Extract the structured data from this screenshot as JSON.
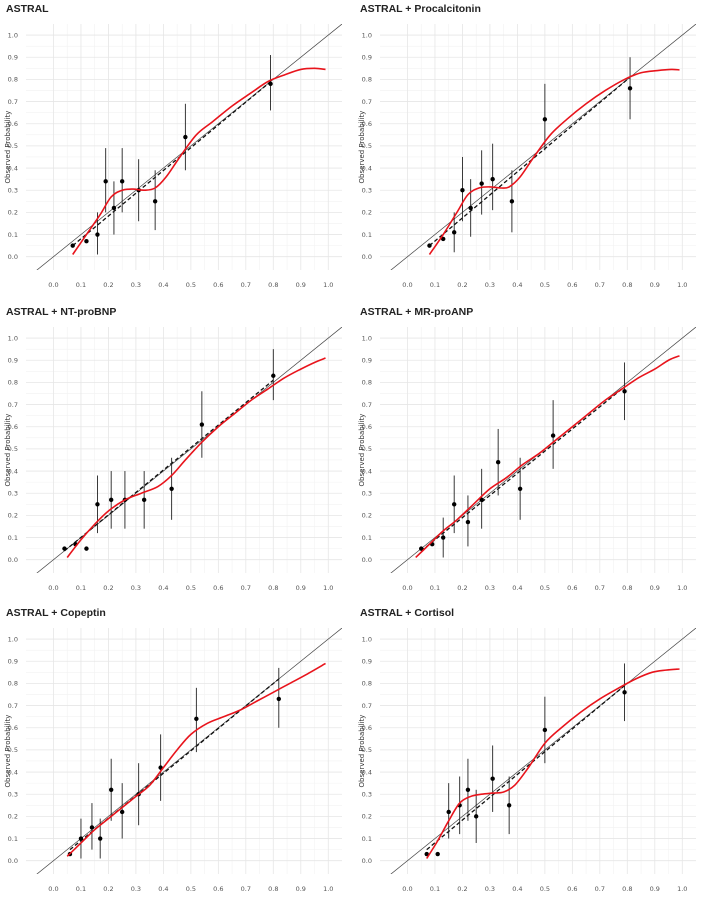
{
  "chart_data": [
    {
      "type": "scatter",
      "title": "ASTRAL",
      "ylabel": "Observed Probability",
      "xlabel": "",
      "xlim": [
        0,
        1
      ],
      "ylim": [
        0,
        1
      ],
      "grid": true,
      "xticks": [
        "0.0",
        "0.1",
        "0.2",
        "0.3",
        "0.4",
        "0.5",
        "0.6",
        "0.7",
        "0.8",
        "0.9",
        "1.0"
      ],
      "yticks": [
        "0.0",
        "0.1",
        "0.2",
        "0.3",
        "0.4",
        "0.5",
        "0.6",
        "0.7",
        "0.8",
        "0.9",
        "1.0"
      ],
      "points": [
        {
          "x": 0.07,
          "y": 0.05,
          "lo": 0.05,
          "hi": 0.05
        },
        {
          "x": 0.12,
          "y": 0.07,
          "lo": 0.07,
          "hi": 0.07
        },
        {
          "x": 0.16,
          "y": 0.1,
          "lo": 0.01,
          "hi": 0.2
        },
        {
          "x": 0.19,
          "y": 0.34,
          "lo": 0.2,
          "hi": 0.49
        },
        {
          "x": 0.22,
          "y": 0.22,
          "lo": 0.1,
          "hi": 0.34
        },
        {
          "x": 0.25,
          "y": 0.34,
          "lo": 0.2,
          "hi": 0.49
        },
        {
          "x": 0.31,
          "y": 0.3,
          "lo": 0.16,
          "hi": 0.44
        },
        {
          "x": 0.37,
          "y": 0.25,
          "lo": 0.12,
          "hi": 0.39
        },
        {
          "x": 0.48,
          "y": 0.54,
          "lo": 0.39,
          "hi": 0.69
        },
        {
          "x": 0.79,
          "y": 0.78,
          "lo": 0.66,
          "hi": 0.91
        }
      ],
      "dashed_fit": [
        [
          0.07,
          0.05
        ],
        [
          0.79,
          0.79
        ]
      ],
      "smooth_curve": [
        [
          0.07,
          0.01
        ],
        [
          0.12,
          0.1
        ],
        [
          0.17,
          0.19
        ],
        [
          0.21,
          0.27
        ],
        [
          0.25,
          0.3
        ],
        [
          0.29,
          0.305
        ],
        [
          0.33,
          0.3
        ],
        [
          0.37,
          0.31
        ],
        [
          0.41,
          0.36
        ],
        [
          0.46,
          0.45
        ],
        [
          0.52,
          0.55
        ],
        [
          0.58,
          0.61
        ],
        [
          0.65,
          0.68
        ],
        [
          0.72,
          0.74
        ],
        [
          0.78,
          0.79
        ],
        [
          0.84,
          0.82
        ],
        [
          0.9,
          0.845
        ],
        [
          0.95,
          0.85
        ],
        [
          0.99,
          0.845
        ]
      ]
    },
    {
      "type": "scatter",
      "title": "ASTRAL + Procalcitonin",
      "ylabel": "Observed Probability",
      "xlabel": "",
      "xlim": [
        0,
        1
      ],
      "ylim": [
        0,
        1
      ],
      "grid": true,
      "xticks": [
        "0.0",
        "0.1",
        "0.2",
        "0.3",
        "0.4",
        "0.5",
        "0.6",
        "0.7",
        "0.8",
        "0.9",
        "1.0"
      ],
      "yticks": [
        "0.0",
        "0.1",
        "0.2",
        "0.3",
        "0.4",
        "0.5",
        "0.6",
        "0.7",
        "0.8",
        "0.9",
        "1.0"
      ],
      "points": [
        {
          "x": 0.08,
          "y": 0.05,
          "lo": 0.05,
          "hi": 0.05
        },
        {
          "x": 0.13,
          "y": 0.08,
          "lo": 0.08,
          "hi": 0.08
        },
        {
          "x": 0.17,
          "y": 0.11,
          "lo": 0.02,
          "hi": 0.2
        },
        {
          "x": 0.2,
          "y": 0.3,
          "lo": 0.16,
          "hi": 0.45
        },
        {
          "x": 0.23,
          "y": 0.22,
          "lo": 0.09,
          "hi": 0.35
        },
        {
          "x": 0.27,
          "y": 0.33,
          "lo": 0.19,
          "hi": 0.48
        },
        {
          "x": 0.31,
          "y": 0.35,
          "lo": 0.21,
          "hi": 0.51
        },
        {
          "x": 0.38,
          "y": 0.25,
          "lo": 0.11,
          "hi": 0.39
        },
        {
          "x": 0.5,
          "y": 0.62,
          "lo": 0.48,
          "hi": 0.78
        },
        {
          "x": 0.81,
          "y": 0.76,
          "lo": 0.62,
          "hi": 0.9
        }
      ],
      "dashed_fit": [
        [
          0.08,
          0.05
        ],
        [
          0.81,
          0.81
        ]
      ],
      "smooth_curve": [
        [
          0.08,
          0.01
        ],
        [
          0.13,
          0.1
        ],
        [
          0.18,
          0.2
        ],
        [
          0.22,
          0.28
        ],
        [
          0.26,
          0.31
        ],
        [
          0.3,
          0.315
        ],
        [
          0.34,
          0.31
        ],
        [
          0.37,
          0.315
        ],
        [
          0.41,
          0.36
        ],
        [
          0.46,
          0.45
        ],
        [
          0.52,
          0.55
        ],
        [
          0.58,
          0.62
        ],
        [
          0.65,
          0.69
        ],
        [
          0.72,
          0.75
        ],
        [
          0.79,
          0.8
        ],
        [
          0.85,
          0.83
        ],
        [
          0.91,
          0.84
        ],
        [
          0.96,
          0.845
        ],
        [
          0.99,
          0.843
        ]
      ]
    },
    {
      "type": "scatter",
      "title": "ASTRAL + NT-proBNP",
      "ylabel": "Observed Probability",
      "xlabel": "",
      "xlim": [
        0,
        1
      ],
      "ylim": [
        0,
        1
      ],
      "grid": true,
      "xticks": [
        "0.0",
        "0.1",
        "0.2",
        "0.3",
        "0.4",
        "0.5",
        "0.6",
        "0.7",
        "0.8",
        "0.9",
        "1.0"
      ],
      "yticks": [
        "0.0",
        "0.1",
        "0.2",
        "0.3",
        "0.4",
        "0.5",
        "0.6",
        "0.7",
        "0.8",
        "0.9",
        "1.0"
      ],
      "points": [
        {
          "x": 0.04,
          "y": 0.05,
          "lo": 0.05,
          "hi": 0.05
        },
        {
          "x": 0.08,
          "y": 0.07,
          "lo": 0.07,
          "hi": 0.07
        },
        {
          "x": 0.12,
          "y": 0.05,
          "lo": 0.05,
          "hi": 0.05
        },
        {
          "x": 0.16,
          "y": 0.25,
          "lo": 0.12,
          "hi": 0.38
        },
        {
          "x": 0.21,
          "y": 0.27,
          "lo": 0.14,
          "hi": 0.4
        },
        {
          "x": 0.26,
          "y": 0.27,
          "lo": 0.14,
          "hi": 0.4
        },
        {
          "x": 0.33,
          "y": 0.27,
          "lo": 0.14,
          "hi": 0.4
        },
        {
          "x": 0.43,
          "y": 0.32,
          "lo": 0.18,
          "hi": 0.46
        },
        {
          "x": 0.54,
          "y": 0.61,
          "lo": 0.46,
          "hi": 0.76
        },
        {
          "x": 0.8,
          "y": 0.83,
          "lo": 0.72,
          "hi": 0.95
        }
      ],
      "dashed_fit": [
        [
          0.04,
          0.04
        ],
        [
          0.8,
          0.81
        ]
      ],
      "smooth_curve": [
        [
          0.05,
          0.01
        ],
        [
          0.1,
          0.09
        ],
        [
          0.15,
          0.16
        ],
        [
          0.2,
          0.22
        ],
        [
          0.26,
          0.27
        ],
        [
          0.32,
          0.3
        ],
        [
          0.38,
          0.33
        ],
        [
          0.43,
          0.38
        ],
        [
          0.48,
          0.45
        ],
        [
          0.54,
          0.53
        ],
        [
          0.6,
          0.6
        ],
        [
          0.66,
          0.66
        ],
        [
          0.72,
          0.72
        ],
        [
          0.78,
          0.77
        ],
        [
          0.84,
          0.82
        ],
        [
          0.9,
          0.86
        ],
        [
          0.95,
          0.89
        ],
        [
          0.99,
          0.91
        ]
      ]
    },
    {
      "type": "scatter",
      "title": "ASTRAL + MR-proANP",
      "ylabel": "Observed Probability",
      "xlabel": "",
      "xlim": [
        0,
        1
      ],
      "ylim": [
        0,
        1
      ],
      "grid": true,
      "xticks": [
        "0.0",
        "0.1",
        "0.2",
        "0.3",
        "0.4",
        "0.5",
        "0.6",
        "0.7",
        "0.8",
        "0.9",
        "1.0"
      ],
      "yticks": [
        "0.0",
        "0.1",
        "0.2",
        "0.3",
        "0.4",
        "0.5",
        "0.6",
        "0.7",
        "0.8",
        "0.9",
        "1.0"
      ],
      "points": [
        {
          "x": 0.05,
          "y": 0.05,
          "lo": 0.05,
          "hi": 0.05
        },
        {
          "x": 0.09,
          "y": 0.07,
          "lo": 0.07,
          "hi": 0.07
        },
        {
          "x": 0.13,
          "y": 0.1,
          "lo": 0.01,
          "hi": 0.19
        },
        {
          "x": 0.17,
          "y": 0.25,
          "lo": 0.12,
          "hi": 0.38
        },
        {
          "x": 0.22,
          "y": 0.17,
          "lo": 0.06,
          "hi": 0.29
        },
        {
          "x": 0.27,
          "y": 0.27,
          "lo": 0.14,
          "hi": 0.41
        },
        {
          "x": 0.33,
          "y": 0.44,
          "lo": 0.29,
          "hi": 0.59
        },
        {
          "x": 0.41,
          "y": 0.32,
          "lo": 0.18,
          "hi": 0.46
        },
        {
          "x": 0.53,
          "y": 0.56,
          "lo": 0.41,
          "hi": 0.72
        },
        {
          "x": 0.79,
          "y": 0.76,
          "lo": 0.63,
          "hi": 0.89
        }
      ],
      "dashed_fit": [
        [
          0.05,
          0.04
        ],
        [
          0.79,
          0.78
        ]
      ],
      "smooth_curve": [
        [
          0.03,
          0.01
        ],
        [
          0.08,
          0.07
        ],
        [
          0.13,
          0.13
        ],
        [
          0.18,
          0.18
        ],
        [
          0.24,
          0.25
        ],
        [
          0.3,
          0.32
        ],
        [
          0.36,
          0.37
        ],
        [
          0.42,
          0.43
        ],
        [
          0.48,
          0.48
        ],
        [
          0.54,
          0.54
        ],
        [
          0.6,
          0.6
        ],
        [
          0.66,
          0.66
        ],
        [
          0.72,
          0.72
        ],
        [
          0.78,
          0.77
        ],
        [
          0.84,
          0.82
        ],
        [
          0.9,
          0.86
        ],
        [
          0.95,
          0.9
        ],
        [
          0.99,
          0.92
        ]
      ]
    },
    {
      "type": "scatter",
      "title": "ASTRAL + Copeptin",
      "ylabel": "Observed Probability",
      "xlabel": "",
      "xlim": [
        0,
        1
      ],
      "ylim": [
        0,
        1
      ],
      "grid": true,
      "xticks": [
        "0.0",
        "0.1",
        "0.2",
        "0.3",
        "0.4",
        "0.5",
        "0.6",
        "0.7",
        "0.8",
        "0.9",
        "1.0"
      ],
      "yticks": [
        "0.0",
        "0.1",
        "0.2",
        "0.3",
        "0.4",
        "0.5",
        "0.6",
        "0.7",
        "0.8",
        "0.9",
        "1.0"
      ],
      "points": [
        {
          "x": 0.06,
          "y": 0.03,
          "lo": 0.03,
          "hi": 0.03
        },
        {
          "x": 0.1,
          "y": 0.1,
          "lo": 0.01,
          "hi": 0.19
        },
        {
          "x": 0.14,
          "y": 0.15,
          "lo": 0.05,
          "hi": 0.26
        },
        {
          "x": 0.17,
          "y": 0.1,
          "lo": 0.01,
          "hi": 0.19
        },
        {
          "x": 0.21,
          "y": 0.32,
          "lo": 0.18,
          "hi": 0.46
        },
        {
          "x": 0.25,
          "y": 0.22,
          "lo": 0.1,
          "hi": 0.35
        },
        {
          "x": 0.31,
          "y": 0.3,
          "lo": 0.16,
          "hi": 0.44
        },
        {
          "x": 0.39,
          "y": 0.42,
          "lo": 0.27,
          "hi": 0.57
        },
        {
          "x": 0.52,
          "y": 0.64,
          "lo": 0.49,
          "hi": 0.78
        },
        {
          "x": 0.82,
          "y": 0.73,
          "lo": 0.6,
          "hi": 0.87
        }
      ],
      "dashed_fit": [
        [
          0.06,
          0.05
        ],
        [
          0.82,
          0.82
        ]
      ],
      "smooth_curve": [
        [
          0.05,
          0.02
        ],
        [
          0.1,
          0.08
        ],
        [
          0.15,
          0.14
        ],
        [
          0.2,
          0.19
        ],
        [
          0.25,
          0.24
        ],
        [
          0.3,
          0.29
        ],
        [
          0.35,
          0.34
        ],
        [
          0.4,
          0.42
        ],
        [
          0.45,
          0.5
        ],
        [
          0.5,
          0.57
        ],
        [
          0.56,
          0.62
        ],
        [
          0.62,
          0.65
        ],
        [
          0.68,
          0.68
        ],
        [
          0.74,
          0.72
        ],
        [
          0.8,
          0.76
        ],
        [
          0.86,
          0.8
        ],
        [
          0.92,
          0.84
        ],
        [
          0.99,
          0.89
        ]
      ]
    },
    {
      "type": "scatter",
      "title": "ASTRAL + Cortisol",
      "ylabel": "Observed Probability",
      "xlabel": "",
      "xlim": [
        0,
        1
      ],
      "ylim": [
        0,
        1
      ],
      "grid": true,
      "xticks": [
        "0.0",
        "0.1",
        "0.2",
        "0.3",
        "0.4",
        "0.5",
        "0.6",
        "0.7",
        "0.8",
        "0.9",
        "1.0"
      ],
      "yticks": [
        "0.0",
        "0.1",
        "0.2",
        "0.3",
        "0.4",
        "0.5",
        "0.6",
        "0.7",
        "0.8",
        "0.9",
        "1.0"
      ],
      "points": [
        {
          "x": 0.07,
          "y": 0.03,
          "lo": 0.03,
          "hi": 0.03
        },
        {
          "x": 0.11,
          "y": 0.03,
          "lo": 0.03,
          "hi": 0.03
        },
        {
          "x": 0.15,
          "y": 0.22,
          "lo": 0.1,
          "hi": 0.35
        },
        {
          "x": 0.19,
          "y": 0.25,
          "lo": 0.12,
          "hi": 0.38
        },
        {
          "x": 0.22,
          "y": 0.32,
          "lo": 0.18,
          "hi": 0.46
        },
        {
          "x": 0.25,
          "y": 0.2,
          "lo": 0.08,
          "hi": 0.32
        },
        {
          "x": 0.31,
          "y": 0.37,
          "lo": 0.22,
          "hi": 0.52
        },
        {
          "x": 0.37,
          "y": 0.25,
          "lo": 0.12,
          "hi": 0.38
        },
        {
          "x": 0.5,
          "y": 0.59,
          "lo": 0.44,
          "hi": 0.74
        },
        {
          "x": 0.79,
          "y": 0.76,
          "lo": 0.63,
          "hi": 0.89
        }
      ],
      "dashed_fit": [
        [
          0.07,
          0.05
        ],
        [
          0.79,
          0.79
        ]
      ],
      "smooth_curve": [
        [
          0.07,
          0.01
        ],
        [
          0.11,
          0.09
        ],
        [
          0.15,
          0.18
        ],
        [
          0.19,
          0.26
        ],
        [
          0.23,
          0.29
        ],
        [
          0.27,
          0.3
        ],
        [
          0.31,
          0.305
        ],
        [
          0.35,
          0.31
        ],
        [
          0.39,
          0.34
        ],
        [
          0.44,
          0.42
        ],
        [
          0.5,
          0.53
        ],
        [
          0.56,
          0.6
        ],
        [
          0.63,
          0.67
        ],
        [
          0.7,
          0.73
        ],
        [
          0.77,
          0.78
        ],
        [
          0.83,
          0.82
        ],
        [
          0.89,
          0.85
        ],
        [
          0.94,
          0.86
        ],
        [
          0.99,
          0.865
        ]
      ]
    }
  ]
}
